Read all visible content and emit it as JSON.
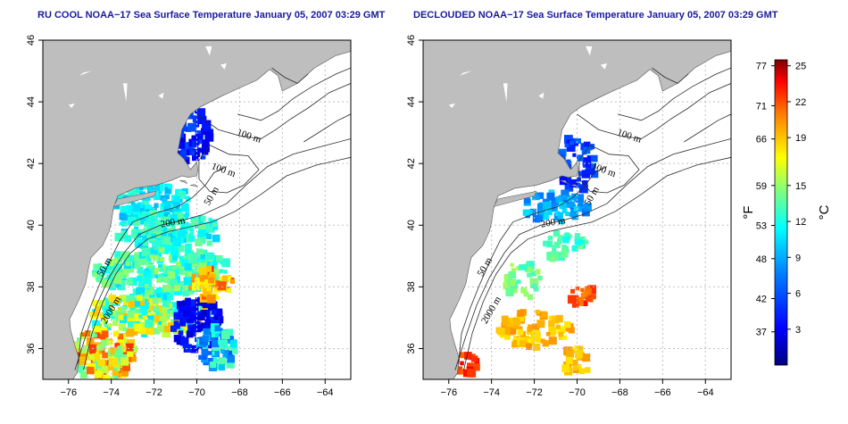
{
  "panels": [
    {
      "title": "RU COOL NOAA−17 Sea Surface Temperature January 05, 2007 03:29 GMT",
      "kind": "raw"
    },
    {
      "title": "DECLOUDED NOAA−17 Sea Surface Temperature January 05, 2007 03:29 GMT",
      "kind": "declouded"
    }
  ],
  "axes": {
    "lon_ticks": [
      -76,
      -74,
      -72,
      -70,
      -68,
      -66,
      -64
    ],
    "lat_ticks": [
      36,
      38,
      40,
      42,
      44,
      46
    ],
    "lon_range": [
      -77.2,
      -62.8
    ],
    "lat_range": [
      35,
      46
    ]
  },
  "contour_labels": [
    {
      "text": "100 m",
      "lon": -67.6,
      "lat": 42.8,
      "rot": 18
    },
    {
      "text": "100 m",
      "lon": -68.8,
      "lat": 41.7,
      "rot": 20
    },
    {
      "text": "50 m",
      "lon": -69.2,
      "lat": 40.9,
      "rot": -60
    },
    {
      "text": "200 m",
      "lon": -71.1,
      "lat": 40.0,
      "rot": -10
    },
    {
      "text": "50 m",
      "lon": -74.2,
      "lat": 38.6,
      "rot": -60
    },
    {
      "text": "2000 m",
      "lon": -73.9,
      "lat": 37.2,
      "rot": -60
    }
  ],
  "colorbar": {
    "unit_f": "°F",
    "unit_c": "°C",
    "f_ticks": [
      77,
      71,
      66,
      59,
      53,
      48,
      42,
      37
    ],
    "c_ticks": [
      25,
      22,
      19,
      15,
      12,
      9,
      6,
      3
    ],
    "c_range": [
      0,
      25.5
    ]
  },
  "colors": {
    "land": "#bebebe",
    "grid": "#c0c0c0",
    "contour": "#2a2a2a",
    "title": "#1a1a9c"
  }
}
